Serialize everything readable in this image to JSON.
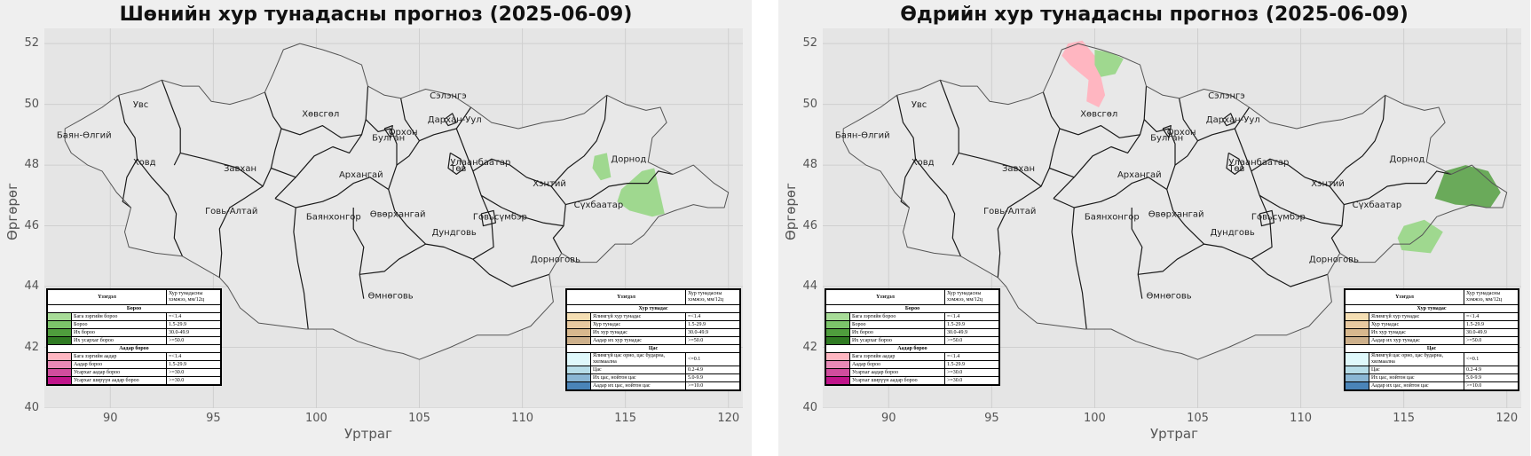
{
  "panels": [
    {
      "id": "night",
      "title": "Шөнийн хур тунадасны прогноз (2025-06-09)",
      "ylabel": "Өргөрөг",
      "xlabel": "Уртраг",
      "x_ticks": [
        "90",
        "95",
        "100",
        "105",
        "110",
        "115",
        "120"
      ],
      "y_ticks": [
        "52",
        "50",
        "48",
        "46",
        "44",
        "42",
        "40"
      ],
      "precip_areas": [
        {
          "name": "dornod-west",
          "class": "rain-light",
          "color": "#9fd88f",
          "lon_lat": [
            [
              113.5,
              48.3
            ],
            [
              114.1,
              48.4
            ],
            [
              114.3,
              47.6
            ],
            [
              113.8,
              47.5
            ],
            [
              113.4,
              47.9
            ]
          ]
        },
        {
          "name": "dornod-sukhbaatar",
          "class": "rain-light",
          "color": "#9fd88f",
          "lon_lat": [
            [
              114.8,
              47.2
            ],
            [
              115.8,
              47.8
            ],
            [
              116.4,
              47.9
            ],
            [
              116.9,
              46.4
            ],
            [
              116.3,
              46.3
            ],
            [
              115.2,
              46.5
            ],
            [
              114.6,
              46.8
            ]
          ]
        }
      ]
    },
    {
      "id": "day",
      "title": "Өдрийн хур тунадасны прогноз (2025-06-09)",
      "ylabel": "Өргөрөг",
      "xlabel": "Уртраг",
      "x_ticks": [
        "90",
        "95",
        "100",
        "105",
        "110",
        "115",
        "120"
      ],
      "y_ticks": [
        "52",
        "50",
        "48",
        "46",
        "44",
        "42",
        "40"
      ],
      "precip_areas": [
        {
          "name": "khuvsgul-sleet",
          "class": "sleet-light",
          "color": "#ffb6c1",
          "lon_lat": [
            [
              98.7,
              52.0
            ],
            [
              99.4,
              52.1
            ],
            [
              100.0,
              51.6
            ],
            [
              100.3,
              50.9
            ],
            [
              100.5,
              50.3
            ],
            [
              100.2,
              49.9
            ],
            [
              99.6,
              50.1
            ],
            [
              99.7,
              50.8
            ],
            [
              98.8,
              51.3
            ],
            [
              98.4,
              51.6
            ]
          ]
        },
        {
          "name": "khuvsgul-rain",
          "class": "rain-light",
          "color": "#9fd88f",
          "lon_lat": [
            [
              100.0,
              51.8
            ],
            [
              100.8,
              51.7
            ],
            [
              101.4,
              51.5
            ],
            [
              101.0,
              51.0
            ],
            [
              100.3,
              50.9
            ],
            [
              100.0,
              51.3
            ]
          ]
        },
        {
          "name": "sukhbaatar-rain",
          "class": "rain-light",
          "color": "#9fd88f",
          "lon_lat": [
            [
              114.9,
              45.2
            ],
            [
              116.3,
              45.1
            ],
            [
              116.9,
              45.8
            ],
            [
              116.0,
              46.2
            ],
            [
              115.0,
              46.0
            ],
            [
              114.7,
              45.6
            ]
          ]
        },
        {
          "name": "dornod-heavy",
          "class": "rain-heavy",
          "color": "#6aaa5a",
          "lon_lat": [
            [
              116.5,
              46.9
            ],
            [
              117.0,
              47.8
            ],
            [
              118.0,
              48.0
            ],
            [
              119.1,
              47.8
            ],
            [
              119.7,
              47.1
            ],
            [
              119.2,
              46.6
            ],
            [
              117.5,
              46.7
            ]
          ]
        }
      ]
    }
  ],
  "provinces": [
    {
      "name": "Увс",
      "lon": 91.1,
      "lat": 49.9
    },
    {
      "name": "Баян-Өлгий",
      "lon": 87.4,
      "lat": 48.9
    },
    {
      "name": "Ховд",
      "lon": 91.1,
      "lat": 48.0
    },
    {
      "name": "Хөвсгөл",
      "lon": 99.3,
      "lat": 49.6
    },
    {
      "name": "Завхан",
      "lon": 95.5,
      "lat": 47.8
    },
    {
      "name": "Говь-Алтай",
      "lon": 94.6,
      "lat": 46.4
    },
    {
      "name": "Архангай",
      "lon": 101.1,
      "lat": 47.6
    },
    {
      "name": "Баянхонгор",
      "lon": 99.5,
      "lat": 46.2
    },
    {
      "name": "Өвөрхангай",
      "lon": 102.6,
      "lat": 46.3
    },
    {
      "name": "Булган",
      "lon": 102.7,
      "lat": 48.8
    },
    {
      "name": "Орхон",
      "lon": 103.5,
      "lat": 49.0
    },
    {
      "name": "Сэлэнгэ",
      "lon": 105.5,
      "lat": 50.2
    },
    {
      "name": "Дархан-Уул",
      "lon": 105.4,
      "lat": 49.4
    },
    {
      "name": "Улаанбаатар",
      "lon": 106.5,
      "lat": 48.0
    },
    {
      "name": "Төв",
      "lon": 106.5,
      "lat": 47.8
    },
    {
      "name": "Хэнтий",
      "lon": 110.5,
      "lat": 47.3
    },
    {
      "name": "Дорнод",
      "lon": 114.3,
      "lat": 48.1
    },
    {
      "name": "Сүхбаатар",
      "lon": 112.5,
      "lat": 46.6
    },
    {
      "name": "Говьсүмбэр",
      "lon": 107.6,
      "lat": 46.2
    },
    {
      "name": "Дундговь",
      "lon": 105.6,
      "lat": 45.7
    },
    {
      "name": "Дорноговь",
      "lon": 110.4,
      "lat": 44.8
    },
    {
      "name": "Өмнөговь",
      "lon": 102.5,
      "lat": 43.6
    }
  ],
  "legend": {
    "header_phenomenon": "Үзэгдэл",
    "header_amount": "Хур тунадасны хэмжээ, мм/12ц",
    "rain_sections": [
      {
        "title": "Бороо",
        "rows": [
          {
            "label": "Бага зэргийн бороо",
            "value": "=<1.4",
            "color": "#a8dc98"
          },
          {
            "label": "Бороо",
            "value": "1.5-29.9",
            "color": "#7cc46a"
          },
          {
            "label": "Их бороо",
            "value": "30.0-49.9",
            "color": "#4f9d3d"
          },
          {
            "label": "Их усархаг бороо",
            "value": ">=50.0",
            "color": "#2f7a22"
          }
        ]
      },
      {
        "title": "Аадар бороо",
        "rows": [
          {
            "label": "Бага зэргийн аадар",
            "value": "=<1.4",
            "color": "#ffb6c1"
          },
          {
            "label": "Аадар бороо",
            "value": "1.5-29.9",
            "color": "#e88ab7"
          },
          {
            "label": "Усархаг аадар бороо",
            "value": ">=30.0",
            "color": "#d04d9d"
          },
          {
            "label": "Усархаг ширүүн аадар бороо",
            "value": ">=30.0",
            "color": "#c0148a"
          }
        ]
      }
    ],
    "snow_sections": [
      {
        "title": "Хур тунадас",
        "rows": [
          {
            "label": "Ялимгүй хур тунадас",
            "value": "=<1.4",
            "color": "#f5deb3"
          },
          {
            "label": "Хур тунадас",
            "value": "1.5-29.9",
            "color": "#e8c9a0"
          },
          {
            "label": "Их хур тунадас",
            "value": "30.0-49.9",
            "color": "#d8b88e"
          },
          {
            "label": "Аадар их хур тунадас",
            "value": ">=50.0",
            "color": "#cdb08b"
          }
        ]
      },
      {
        "title": "Цас",
        "rows": [
          {
            "label": "Ялимгүй цас орно, цас бударна, хялмаална",
            "value": "<=0.1",
            "color": "#dff8fb"
          },
          {
            "label": "Цас",
            "value": "0.2-4.9",
            "color": "#b7dde8"
          },
          {
            "label": "Их цас, нойтон цас",
            "value": "5.0-9.9",
            "color": "#8ab6d4"
          },
          {
            "label": "Аадар их цас, нойтон цас",
            "value": ">=10.0",
            "color": "#4a84b8"
          }
        ]
      }
    ]
  }
}
